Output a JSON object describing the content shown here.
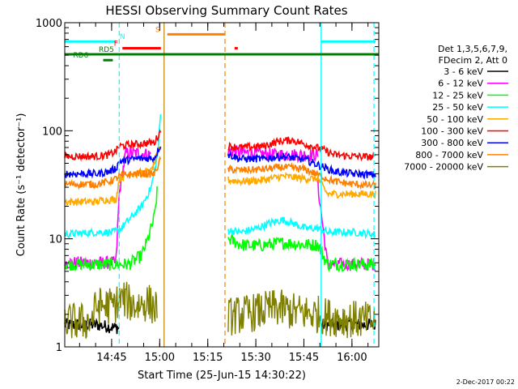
{
  "chart_data": {
    "type": "line",
    "title": "HESSI Observing Summary Count Rates",
    "xlabel": "Start Time (25-Jun-15 14:30:22)",
    "ylabel": "Count Rate (s⁻¹ detector⁻¹)",
    "yscale": "log",
    "ylim": [
      1,
      1000
    ],
    "xlim_minutes": [
      0,
      98
    ],
    "x_tick_labels": [
      "14:45",
      "15:00",
      "15:15",
      "15:30",
      "15:45",
      "16:00"
    ],
    "x_tick_minutes": [
      14.63,
      29.63,
      44.63,
      59.63,
      74.63,
      89.63
    ],
    "y_tick_labels": [
      "1",
      "10",
      "100",
      "1000"
    ],
    "y_tick_values": [
      1,
      10,
      100,
      1000
    ],
    "grid": false,
    "legend_position": "right",
    "legend_header": [
      "Det 1,3,5,6,7,9,",
      "FDecim 2, Att 0"
    ],
    "footer_date": "2-Dec-2017 00:22",
    "series": [
      {
        "name": "3 - 6 keV",
        "color": "#000000",
        "segments": [
          [
            [
              0,
              1.6
            ],
            [
              10,
              1.6
            ],
            [
              16,
              1.5
            ],
            [
              17,
              1.5
            ]
          ],
          [
            [
              80,
              1.6
            ],
            [
              88,
              1.6
            ],
            [
              97,
              1.6
            ]
          ]
        ]
      },
      {
        "name": "6 - 12 keV",
        "color": "#ff00ff",
        "segments": [
          [
            [
              0,
              6
            ],
            [
              14,
              6
            ],
            [
              16,
              6
            ],
            [
              17,
              26
            ],
            [
              19,
              62
            ],
            [
              23,
              62
            ],
            [
              27,
              60
            ]
          ],
          [
            [
              51,
              65
            ],
            [
              60,
              61
            ],
            [
              68,
              60
            ],
            [
              79,
              60
            ]
          ],
          [
            [
              79,
              31
            ],
            [
              82,
              5.8
            ],
            [
              90,
              5.8
            ],
            [
              97,
              5.8
            ]
          ]
        ]
      },
      {
        "name": "12 - 25 keV",
        "color": "#00ff00",
        "segments": [
          [
            [
              0,
              5.8
            ],
            [
              10,
              5.8
            ],
            [
              16,
              5.8
            ],
            [
              17,
              5.8
            ],
            [
              20,
              5.8
            ],
            [
              24,
              7
            ],
            [
              26,
              10
            ],
            [
              28,
              16
            ],
            [
              29,
              30
            ]
          ],
          [
            [
              51,
              10
            ],
            [
              55,
              8.8
            ],
            [
              60,
              8.6
            ],
            [
              68,
              9.2
            ],
            [
              75,
              8.8
            ],
            [
              79,
              8.8
            ],
            [
              82,
              5.8
            ],
            [
              90,
              5.8
            ],
            [
              97,
              5.8
            ]
          ]
        ]
      },
      {
        "name": "25 - 50 keV",
        "color": "#00ffff",
        "segments": [
          [
            [
              0,
              11
            ],
            [
              10,
              11.5
            ],
            [
              15,
              11.5
            ],
            [
              17,
              12
            ],
            [
              20,
              15
            ],
            [
              24,
              20
            ],
            [
              27,
              30
            ],
            [
              29,
              60
            ],
            [
              30,
              155
            ]
          ],
          [
            [
              51,
              12
            ],
            [
              55,
              11.5
            ],
            [
              60,
              12.5
            ],
            [
              64,
              14
            ],
            [
              68,
              15
            ],
            [
              71,
              14
            ],
            [
              75,
              12.5
            ],
            [
              79,
              12.5
            ],
            [
              82,
              11.5
            ],
            [
              90,
              11.5
            ],
            [
              97,
              11
            ]
          ]
        ]
      },
      {
        "name": "50 - 100 keV",
        "color": "#ffaa00",
        "segments": [
          [
            [
              0,
              22
            ],
            [
              10,
              22
            ],
            [
              12,
              23
            ],
            [
              14,
              23
            ],
            [
              16,
              23
            ],
            [
              17,
              36
            ],
            [
              20,
              40
            ],
            [
              27,
              42
            ],
            [
              30,
              75
            ]
          ],
          [
            [
              51,
              35
            ],
            [
              55,
              34
            ],
            [
              62,
              35
            ],
            [
              68,
              38
            ],
            [
              75,
              36
            ],
            [
              79,
              36
            ],
            [
              82,
              26
            ],
            [
              90,
              26
            ],
            [
              97,
              26
            ]
          ]
        ]
      },
      {
        "name": "100 - 300 keV",
        "color": "#ff0000",
        "segments": [
          [
            [
              0,
              58
            ],
            [
              10,
              58
            ],
            [
              14,
              60
            ],
            [
              16,
              65
            ],
            [
              17,
              72
            ],
            [
              22,
              75
            ],
            [
              28,
              78
            ],
            [
              30,
              100
            ]
          ],
          [
            [
              51,
              72
            ],
            [
              55,
              70
            ],
            [
              62,
              72
            ],
            [
              67,
              80
            ],
            [
              71,
              82
            ],
            [
              75,
              75
            ],
            [
              80,
              68
            ],
            [
              84,
              60
            ],
            [
              90,
              58
            ],
            [
              97,
              57
            ]
          ]
        ]
      },
      {
        "name": "300 - 800 keV",
        "color": "#0000ff",
        "segments": [
          [
            [
              0,
              40
            ],
            [
              10,
              40
            ],
            [
              14,
              42
            ],
            [
              16,
              45
            ],
            [
              17,
              52
            ],
            [
              22,
              55
            ],
            [
              28,
              56
            ],
            [
              30,
              75
            ]
          ],
          [
            [
              51,
              60
            ],
            [
              55,
              55
            ],
            [
              62,
              55
            ],
            [
              68,
              58
            ],
            [
              75,
              54
            ],
            [
              80,
              47
            ],
            [
              84,
              42
            ],
            [
              90,
              40
            ],
            [
              97,
              39
            ]
          ]
        ]
      },
      {
        "name": "800 - 7000 keV",
        "color": "#ff8000",
        "segments": [
          [
            [
              0,
              32
            ],
            [
              10,
              32
            ],
            [
              14,
              34
            ],
            [
              16,
              36
            ],
            [
              17,
              38
            ],
            [
              22,
              40
            ],
            [
              28,
              40
            ],
            [
              30,
              55
            ]
          ],
          [
            [
              51,
              44
            ],
            [
              55,
              43
            ],
            [
              62,
              44
            ],
            [
              68,
              46
            ],
            [
              75,
              44
            ],
            [
              80,
              38
            ],
            [
              84,
              34
            ],
            [
              90,
              32
            ],
            [
              97,
              31
            ]
          ]
        ]
      },
      {
        "name": "7000 - 20000 keV",
        "color": "#808000",
        "segments": [
          [
            [
              0,
              1.7
            ],
            [
              8,
              1.7
            ],
            [
              10,
              2.4
            ],
            [
              15,
              2.4
            ],
            [
              18,
              2.8
            ],
            [
              22,
              2.4
            ],
            [
              26,
              2.6
            ],
            [
              29,
              2.2
            ]
          ],
          [
            [
              51,
              1.9
            ],
            [
              60,
              2.1
            ],
            [
              66,
              2.3
            ],
            [
              72,
              2.1
            ],
            [
              79,
              2.0
            ],
            [
              82,
              1.9
            ],
            [
              90,
              1.8
            ],
            [
              97,
              1.7
            ]
          ]
        ]
      }
    ],
    "vertical_markers": [
      {
        "minute": 17,
        "color": "#00ffff",
        "style": "dashed"
      },
      {
        "minute": 31,
        "color": "#b8860b",
        "style": "solid"
      },
      {
        "minute": 50,
        "color": "#ff8000",
        "style": "dashed"
      },
      {
        "minute": 80,
        "color": "#00ffff",
        "style": "solid"
      },
      {
        "minute": 96.5,
        "color": "#00ffff",
        "style": "dashed"
      }
    ],
    "flag_bars": [
      {
        "label": "N",
        "color": "#00ffff",
        "value": 670,
        "ranges": [
          [
            0,
            16
          ],
          [
            80,
            97
          ]
        ],
        "label_minute": 18
      },
      {
        "label": "S",
        "color": "#ff8000",
        "value": 780,
        "ranges": [
          [
            32,
            50
          ]
        ],
        "label_minute": 29
      },
      {
        "label": "F",
        "color": "#ff0000",
        "value": 580,
        "ranges": [
          [
            18,
            30
          ],
          [
            53,
            54
          ]
        ],
        "label_minute": 16
      },
      {
        "label": "RD5",
        "color": "#008000",
        "value": 510,
        "ranges": [
          [
            0,
            98
          ]
        ],
        "label_minute": 13
      },
      {
        "label": "RD6",
        "color": "#008000",
        "value": 450,
        "ranges": [
          [
            12,
            15
          ]
        ],
        "label_minute": 5
      }
    ]
  }
}
